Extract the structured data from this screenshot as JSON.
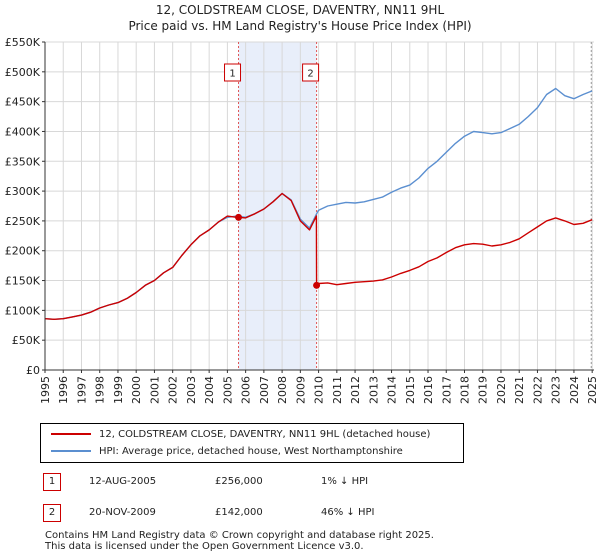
{
  "title_line1": "12, COLDSTREAM CLOSE, DAVENTRY, NN11 9HL",
  "title_line2": "Price paid vs. HM Land Registry's House Price Index (HPI)",
  "legend": {
    "property_label": "12, COLDSTREAM CLOSE, DAVENTRY, NN11 9HL (detached house)",
    "hpi_label": "HPI: Average price, detached house, West Northamptonshire",
    "property_color": "#cc0000",
    "hpi_color": "#5b8fd0"
  },
  "sales": [
    {
      "num": "1",
      "date": "12-AUG-2005",
      "price": "£256,000",
      "hpi_diff": "1% ↓ HPI"
    },
    {
      "num": "2",
      "date": "20-NOV-2009",
      "price": "£142,000",
      "hpi_diff": "46% ↓ HPI"
    }
  ],
  "footer_line1": "Contains HM Land Registry data © Crown copyright and database right 2025.",
  "footer_line2": "This data is licensed under the Open Government Licence v3.0.",
  "chart_data": {
    "type": "line",
    "title": "12, COLDSTREAM CLOSE, DAVENTRY, NN11 9HL — Price paid vs. HM Land Registry's House Price Index (HPI)",
    "xlabel": "",
    "ylabel": "",
    "xlim": [
      1995,
      2025.1
    ],
    "ylim": [
      0,
      550000
    ],
    "y_ticks": [
      0,
      50000,
      100000,
      150000,
      200000,
      250000,
      300000,
      350000,
      400000,
      450000,
      500000,
      550000
    ],
    "y_tick_labels": [
      "£0",
      "£50K",
      "£100K",
      "£150K",
      "£200K",
      "£250K",
      "£300K",
      "£350K",
      "£400K",
      "£450K",
      "£500K",
      "£550K"
    ],
    "x_ticks": [
      1995,
      1996,
      1997,
      1998,
      1999,
      2000,
      2001,
      2002,
      2003,
      2004,
      2005,
      2006,
      2007,
      2008,
      2009,
      2010,
      2011,
      2012,
      2013,
      2014,
      2015,
      2016,
      2017,
      2018,
      2019,
      2020,
      2021,
      2022,
      2023,
      2024,
      2025
    ],
    "x_tick_labels": [
      "1995",
      "1996",
      "1997",
      "1998",
      "1999",
      "2000",
      "2001",
      "2002",
      "2003",
      "2004",
      "2005",
      "2006",
      "2007",
      "2008",
      "2009",
      "2010",
      "2011",
      "2012",
      "2013",
      "2014",
      "2015",
      "2016",
      "2017",
      "2018",
      "2019",
      "2020",
      "2021",
      "2022",
      "2023",
      "2024",
      "2025"
    ],
    "grid": true,
    "shaded_span": [
      2005.61,
      2009.89
    ],
    "series": [
      {
        "name": "HPI: Average price, detached house, West Northamptonshire",
        "x": [
          1995.0,
          1995.5,
          1996.0,
          1996.5,
          1997.0,
          1997.5,
          1998.0,
          1998.5,
          1999.0,
          1999.5,
          2000.0,
          2000.5,
          2001.0,
          2001.5,
          2002.0,
          2002.5,
          2003.0,
          2003.5,
          2004.0,
          2004.5,
          2005.0,
          2005.5,
          2006.0,
          2006.5,
          2007.0,
          2007.5,
          2008.0,
          2008.5,
          2009.0,
          2009.5,
          2009.89,
          2010.0,
          2010.5,
          2011.0,
          2011.5,
          2012.0,
          2012.5,
          2013.0,
          2013.5,
          2014.0,
          2014.5,
          2015.0,
          2015.5,
          2016.0,
          2016.5,
          2017.0,
          2017.5,
          2018.0,
          2018.5,
          2019.0,
          2019.5,
          2020.0,
          2020.5,
          2021.0,
          2021.5,
          2022.0,
          2022.5,
          2023.0,
          2023.5,
          2024.0,
          2024.5,
          2025.0
        ],
        "values": [
          86000,
          85000,
          86000,
          89000,
          92000,
          97000,
          104000,
          109000,
          113000,
          120000,
          130000,
          142000,
          150000,
          163000,
          172000,
          192000,
          210000,
          225000,
          235000,
          248000,
          256000,
          258000,
          256000,
          262000,
          270000,
          282000,
          296000,
          285000,
          253000,
          238000,
          262000,
          268000,
          275000,
          278000,
          281000,
          280000,
          282000,
          286000,
          290000,
          298000,
          305000,
          310000,
          322000,
          338000,
          350000,
          365000,
          380000,
          392000,
          400000,
          398000,
          396000,
          398000,
          405000,
          412000,
          425000,
          440000,
          462000,
          472000,
          460000,
          455000,
          462000,
          468000
        ],
        "color": "#5b8fd0"
      },
      {
        "name": "12, COLDSTREAM CLOSE, DAVENTRY, NN11 9HL (detached house)",
        "x": [
          1995.0,
          1995.5,
          1996.0,
          1996.5,
          1997.0,
          1997.5,
          1998.0,
          1998.5,
          1999.0,
          1999.5,
          2000.0,
          2000.5,
          2001.0,
          2001.5,
          2002.0,
          2002.5,
          2003.0,
          2003.5,
          2004.0,
          2004.5,
          2005.0,
          2005.5,
          2005.61,
          2006.0,
          2006.5,
          2007.0,
          2007.5,
          2008.0,
          2008.5,
          2009.0,
          2009.5,
          2009.88,
          2009.89,
          2010.0,
          2010.5,
          2011.0,
          2011.5,
          2012.0,
          2012.5,
          2013.0,
          2013.5,
          2014.0,
          2014.5,
          2015.0,
          2015.5,
          2016.0,
          2016.5,
          2017.0,
          2017.5,
          2018.0,
          2018.5,
          2019.0,
          2019.5,
          2020.0,
          2020.5,
          2021.0,
          2021.5,
          2022.0,
          2022.5,
          2023.0,
          2023.5,
          2024.0,
          2024.5,
          2025.0
        ],
        "values": [
          86000,
          85000,
          86000,
          89000,
          92000,
          97000,
          104000,
          109000,
          113000,
          120000,
          130000,
          142000,
          150000,
          163000,
          172000,
          192000,
          210000,
          225000,
          235000,
          248000,
          258000,
          256000,
          256000,
          255000,
          262000,
          270000,
          282000,
          296000,
          284000,
          250000,
          235000,
          258000,
          142000,
          145000,
          146000,
          143000,
          145000,
          147000,
          148000,
          149000,
          151000,
          156000,
          162000,
          167000,
          173000,
          182000,
          188000,
          197000,
          205000,
          210000,
          212000,
          211000,
          208000,
          210000,
          214000,
          220000,
          230000,
          240000,
          250000,
          255000,
          250000,
          244000,
          246000,
          252000
        ],
        "color": "#cc0000"
      }
    ],
    "sale_points": [
      {
        "label": "1",
        "x": 2005.61,
        "y": 256000
      },
      {
        "label": "2",
        "x": 2009.89,
        "y": 142000
      }
    ]
  }
}
